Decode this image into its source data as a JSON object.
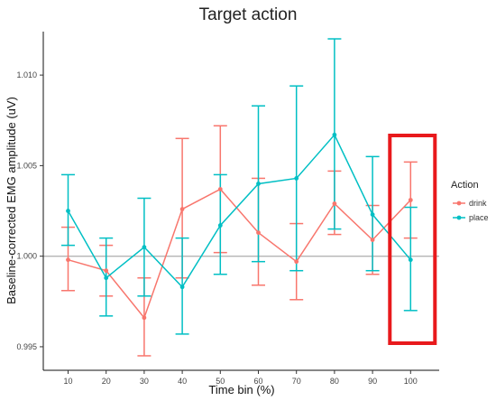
{
  "chart_data": {
    "type": "line",
    "title": "Target action",
    "xlabel": "Time bin (%)",
    "ylabel": "Baseline-corrected EMG amplitude (uV)",
    "x": [
      10,
      20,
      30,
      40,
      50,
      60,
      70,
      80,
      90,
      100
    ],
    "x_tick_labels": [
      "10",
      "20",
      "30",
      "40",
      "50",
      "60",
      "70",
      "80",
      "90",
      "100"
    ],
    "y_tick_values": [
      0.995,
      1.0,
      1.005,
      1.01
    ],
    "y_tick_labels": [
      "0.995",
      "1.000",
      "1.005",
      "1.010"
    ],
    "ylim": [
      0.9937,
      1.0124
    ],
    "reference_line": 1.0,
    "grid": false,
    "legend_title": "Action",
    "legend_position": "right",
    "series": [
      {
        "name": "drink",
        "color": "#F8766D",
        "values": [
          0.9998,
          0.9992,
          0.9966,
          1.0026,
          1.0037,
          1.0013,
          0.9997,
          1.0029,
          1.0009,
          1.0031
        ],
        "error_low": [
          0.9981,
          0.9978,
          0.9945,
          0.9988,
          1.0002,
          0.9984,
          0.9976,
          1.0012,
          0.999,
          1.001
        ],
        "error_high": [
          1.0016,
          1.0006,
          0.9988,
          1.0065,
          1.0072,
          1.0043,
          1.0018,
          1.0047,
          1.0028,
          1.0052
        ]
      },
      {
        "name": "place",
        "color": "#00BFC4",
        "values": [
          1.0025,
          0.9988,
          1.0005,
          0.9983,
          1.0017,
          1.004,
          1.0043,
          1.0067,
          1.0023,
          0.9998
        ],
        "error_low": [
          1.0006,
          0.9967,
          0.9978,
          0.9957,
          0.999,
          0.9997,
          0.9992,
          1.0015,
          0.9992,
          0.997
        ],
        "error_high": [
          1.0045,
          1.001,
          1.0032,
          1.001,
          1.0045,
          1.0083,
          1.0094,
          1.012,
          1.0055,
          1.0027
        ]
      }
    ],
    "highlight": {
      "x_category": 100,
      "color": "#E8191C"
    }
  }
}
